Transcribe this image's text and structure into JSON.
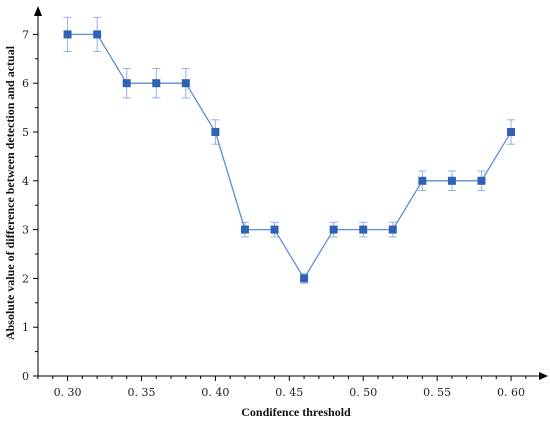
{
  "chart_data": {
    "type": "line",
    "title": "",
    "xlabel": "Condifence threshold",
    "ylabel": "Absolute value of difference between detection and actual",
    "x": [
      0.3,
      0.32,
      0.34,
      0.36,
      0.38,
      0.4,
      0.42,
      0.44,
      0.46,
      0.48,
      0.5,
      0.52,
      0.54,
      0.56,
      0.58,
      0.6
    ],
    "series": [
      {
        "values": [
          7,
          7,
          6,
          6,
          6,
          5,
          3,
          3,
          2,
          3,
          3,
          3,
          4,
          4,
          4,
          5
        ],
        "errors": [
          0.35,
          0.35,
          0.3,
          0.3,
          0.3,
          0.25,
          0.15,
          0.15,
          0.1,
          0.15,
          0.15,
          0.15,
          0.2,
          0.2,
          0.2,
          0.25
        ]
      }
    ],
    "xlim": [
      0.28,
      0.625
    ],
    "ylim": [
      0,
      7.5
    ],
    "xticks": [
      0.3,
      0.35,
      0.4,
      0.45,
      0.5,
      0.55,
      0.6
    ],
    "xtick_labels": [
      "0. 30",
      "0. 35",
      "0. 40",
      "0. 45",
      "0. 50",
      "0. 55",
      "0. 60"
    ],
    "yticks": [
      0,
      1,
      2,
      3,
      4,
      5,
      6,
      7
    ],
    "yticks_labels": [
      "0",
      "1",
      "2",
      "3",
      "4",
      "5",
      "6",
      "7"
    ],
    "grid": false,
    "colors": {
      "line": "#5b8fd6",
      "marker": "#2f62b5",
      "errorbar": "#8fb3e0",
      "axis": "#000000"
    }
  }
}
